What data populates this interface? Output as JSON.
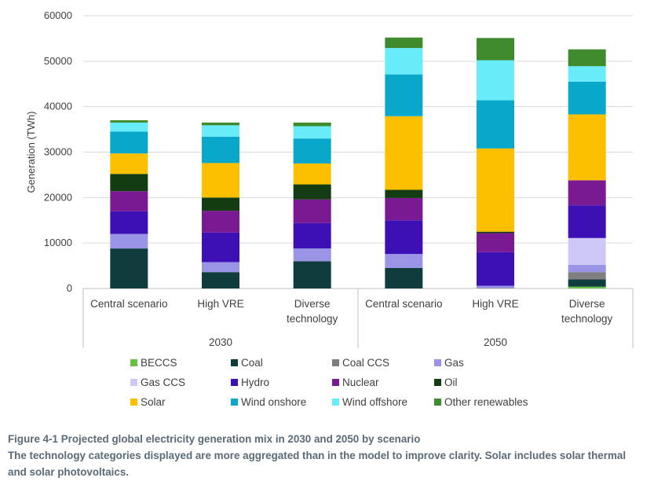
{
  "chart_data": {
    "type": "bar",
    "stacked": true,
    "ylabel": "Generation (TWh)",
    "ylim": [
      0,
      60000
    ],
    "yticks": [
      0,
      10000,
      20000,
      30000,
      40000,
      50000,
      60000
    ],
    "ytick_labels": [
      "0",
      "10000",
      "20000",
      "30000",
      "40000",
      "50000",
      "60000"
    ],
    "grid": true,
    "legend_position": "bottom",
    "groups": [
      {
        "label": "2030",
        "categories": [
          "Central scenario",
          "High VRE",
          "Diverse technology"
        ]
      },
      {
        "label": "2050",
        "categories": [
          "Central scenario",
          "High VRE",
          "Diverse technology"
        ]
      }
    ],
    "categories": [
      "Central scenario|2030",
      "High VRE|2030",
      "Diverse technology|2030",
      "Central scenario|2050",
      "High VRE|2050",
      "Diverse technology|2050"
    ],
    "series": [
      {
        "name": "BECCS",
        "color": "#6abf45",
        "values": [
          0,
          0,
          0,
          0,
          0,
          400
        ]
      },
      {
        "name": "Coal",
        "color": "#0f3d3e",
        "values": [
          8800,
          3600,
          6000,
          4500,
          0,
          1600
        ]
      },
      {
        "name": "Coal CCS",
        "color": "#7f7f7f",
        "values": [
          0,
          0,
          0,
          0,
          100,
          1600
        ]
      },
      {
        "name": "Gas",
        "color": "#9a94e6",
        "values": [
          3200,
          2200,
          2800,
          3100,
          500,
          1600
        ]
      },
      {
        "name": "Gas CCS",
        "color": "#cdc8f5",
        "values": [
          0,
          0,
          0,
          0,
          0,
          5900
        ]
      },
      {
        "name": "Hydro",
        "color": "#3d10b5",
        "values": [
          5000,
          6500,
          5600,
          7400,
          7400,
          7200
        ]
      },
      {
        "name": "Nuclear",
        "color": "#7a1a93",
        "values": [
          4400,
          4800,
          5200,
          4900,
          4200,
          5500
        ]
      },
      {
        "name": "Oil",
        "color": "#143c12",
        "values": [
          3800,
          2900,
          3300,
          1800,
          300,
          0
        ]
      },
      {
        "name": "Solar",
        "color": "#fcc000",
        "values": [
          4500,
          7600,
          4600,
          16200,
          18300,
          14500
        ]
      },
      {
        "name": "Wind onshore",
        "color": "#09a7c9",
        "values": [
          4800,
          5800,
          5500,
          9200,
          10600,
          7200
        ]
      },
      {
        "name": "Wind offshore",
        "color": "#69ecf9",
        "values": [
          2000,
          2500,
          2700,
          5800,
          8800,
          3400
        ]
      },
      {
        "name": "Other renewables",
        "color": "#3f8a2c",
        "values": [
          500,
          600,
          800,
          2300,
          4900,
          3700
        ]
      }
    ]
  },
  "caption": {
    "line1": "Figure 4-1 Projected global electricity generation mix in 2030 and 2050 by scenario",
    "line2": "The technology categories displayed are more aggregated than in the model to improve clarity. Solar includes solar thermal and solar photovoltaics."
  }
}
